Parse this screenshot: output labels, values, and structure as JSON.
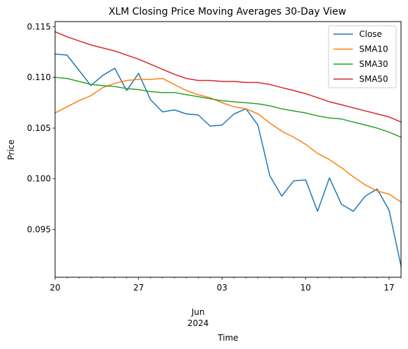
{
  "chart_data": {
    "type": "line",
    "title": "XLM Closing Price Moving Averages 30-Day View",
    "xlabel": "Time",
    "ylabel": "Price",
    "xlim": [
      "2024-05-20",
      "2024-06-18"
    ],
    "ylim": [
      0.0903,
      0.1155
    ],
    "x_major_ticks": [
      {
        "date": "2024-05-20",
        "label": "20"
      },
      {
        "date": "2024-05-27",
        "label": "27"
      },
      {
        "date": "2024-06-03",
        "label": "03"
      },
      {
        "date": "2024-06-10",
        "label": "10"
      },
      {
        "date": "2024-06-17",
        "label": "17"
      }
    ],
    "x_month_label": "Jun",
    "x_year_label": "2024",
    "y_ticks": [
      {
        "value": 0.095,
        "label": "0.095"
      },
      {
        "value": 0.1,
        "label": "0.100"
      },
      {
        "value": 0.105,
        "label": "0.105"
      },
      {
        "value": 0.11,
        "label": "0.110"
      },
      {
        "value": 0.115,
        "label": "0.115"
      }
    ],
    "grid": false,
    "legend_position": "top-right",
    "x": [
      "2024-05-20",
      "2024-05-21",
      "2024-05-22",
      "2024-05-23",
      "2024-05-24",
      "2024-05-25",
      "2024-05-26",
      "2024-05-27",
      "2024-05-28",
      "2024-05-29",
      "2024-05-30",
      "2024-05-31",
      "2024-06-01",
      "2024-06-02",
      "2024-06-03",
      "2024-06-04",
      "2024-06-05",
      "2024-06-06",
      "2024-06-07",
      "2024-06-08",
      "2024-06-09",
      "2024-06-10",
      "2024-06-11",
      "2024-06-12",
      "2024-06-13",
      "2024-06-14",
      "2024-06-15",
      "2024-06-16",
      "2024-06-17",
      "2024-06-18"
    ],
    "series": [
      {
        "name": "Close",
        "color": "#1f77b4",
        "values": [
          0.1123,
          0.1122,
          0.1107,
          0.1092,
          0.1102,
          0.1109,
          0.1087,
          0.1104,
          0.1078,
          0.1066,
          0.1068,
          0.1064,
          0.1063,
          0.1052,
          0.1053,
          0.1064,
          0.1069,
          0.1053,
          0.1003,
          0.0983,
          0.0998,
          0.0999,
          0.0968,
          0.1001,
          0.0975,
          0.0968,
          0.0983,
          0.099,
          0.0969,
          0.0914
        ]
      },
      {
        "name": "SMA10",
        "color": "#ff7f0e",
        "values": [
          0.1065,
          0.1071,
          0.1077,
          0.1082,
          0.109,
          0.1094,
          0.1097,
          0.1098,
          0.1098,
          0.1099,
          0.1093,
          0.1087,
          0.1083,
          0.108,
          0.1075,
          0.1071,
          0.1069,
          0.1064,
          0.1055,
          0.1047,
          0.1041,
          0.1034,
          0.1025,
          0.1019,
          0.1011,
          0.1002,
          0.0994,
          0.0988,
          0.0985,
          0.0977
        ]
      },
      {
        "name": "SMA30",
        "color": "#2ca02c",
        "values": [
          0.11,
          0.1099,
          0.1096,
          0.1093,
          0.1092,
          0.1091,
          0.1089,
          0.1088,
          0.1086,
          0.1085,
          0.1085,
          0.1083,
          0.1081,
          0.1079,
          0.1077,
          0.1076,
          0.1075,
          0.1074,
          0.1072,
          0.1069,
          0.1067,
          0.1065,
          0.1062,
          0.106,
          0.1059,
          0.1056,
          0.1053,
          0.105,
          0.1046,
          0.1041
        ]
      },
      {
        "name": "SMA50",
        "color": "#d62728",
        "values": [
          0.1145,
          0.114,
          0.1136,
          0.1132,
          0.1129,
          0.1126,
          0.1122,
          0.1118,
          0.1113,
          0.1108,
          0.1103,
          0.1099,
          0.1097,
          0.1097,
          0.1096,
          0.1096,
          0.1095,
          0.1095,
          0.1093,
          0.109,
          0.1087,
          0.1084,
          0.108,
          0.1076,
          0.1073,
          0.107,
          0.1067,
          0.1064,
          0.1061,
          0.1056
        ]
      }
    ]
  }
}
